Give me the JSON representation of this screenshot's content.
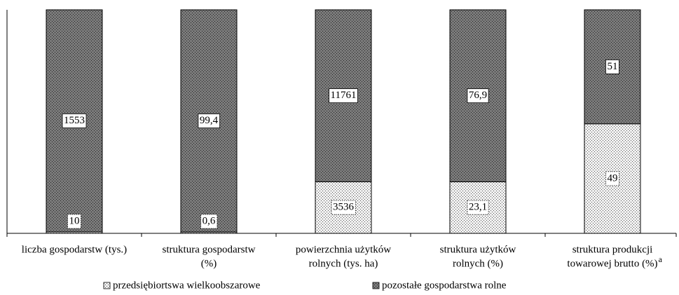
{
  "chart_data": {
    "type": "stacked100",
    "categories": [
      {
        "lines": [
          "liczba gospodarstw (tys.)"
        ]
      },
      {
        "lines": [
          "struktura gospodarstw",
          "(%)"
        ]
      },
      {
        "lines": [
          "powierzchnia użytków",
          "rolnych (tys. ha)"
        ]
      },
      {
        "lines": [
          "struktura użytków",
          "rolnych (%)"
        ]
      },
      {
        "lines": [
          "struktura produkcji",
          "towarowej brutto (%)"
        ],
        "superscript": "a"
      }
    ],
    "series": [
      {
        "name": "przedsiębiortswa wielkoobszarowe",
        "color": "#f0f0f0",
        "values": [
          10,
          0.6,
          3536,
          23.1,
          49
        ],
        "value_labels": [
          "10",
          "0,6",
          "3536",
          "23,1",
          "49"
        ]
      },
      {
        "name": "pozostałe gospodarstwa rolne",
        "color": "#7a7a7a",
        "values": [
          1553,
          99.4,
          11761,
          76.9,
          51
        ],
        "value_labels": [
          "1553",
          "99,4",
          "11761",
          "76,9",
          "51"
        ]
      }
    ]
  }
}
